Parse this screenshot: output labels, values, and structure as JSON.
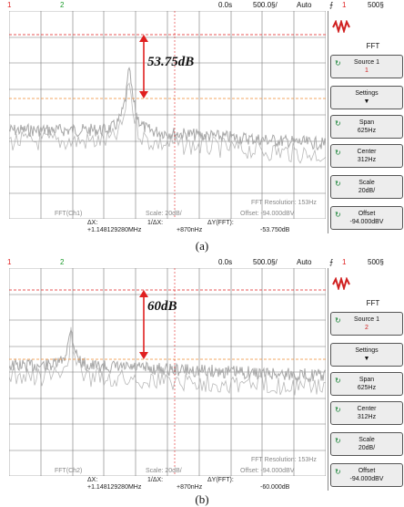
{
  "top_bar": {
    "ch1": "1",
    "ch2": "2",
    "time_pos": "0.0s",
    "time_div": "500.0§/",
    "mode": "Auto",
    "trigger_ch": "1",
    "trig_level": "500§"
  },
  "side_panel": {
    "fft_label": "FFT",
    "source_label": "Source 1",
    "settings_label": "Settings",
    "span_label": "Span",
    "span_value": "625Hz",
    "center_label": "Center",
    "center_value": "312Hz",
    "scale_label": "Scale",
    "scale_value": "20dB/",
    "offset_label": "Offset",
    "offset_value": "-94.000dBV"
  },
  "panels": [
    {
      "annotation": "53.75dB",
      "source_value": "1",
      "fft_ch": "FFT(Ch1)",
      "scale": "Scale: 20dB/",
      "offset": "Offset: -94.000dBV",
      "resolution": "FFT Resolution: 153Hz",
      "dx_label": "ΔX:",
      "dx_value": "+1.148129280MHz",
      "inv_dx_label": "1/ΔX:",
      "inv_dx_value": "+870nHz",
      "dy_label": "ΔY(FFT):",
      "dy_value": "-53.750dB",
      "caption": "(a)"
    },
    {
      "annotation": "60dB",
      "source_value": "2",
      "fft_ch": "FFT(Ch2)",
      "scale": "Scale: 20dB/",
      "offset": "Offset: -94.000dBV",
      "resolution": "FFT Resolution: 153Hz",
      "dx_label": "ΔX:",
      "dx_value": "+1.148129280MHz",
      "inv_dx_label": "1/ΔX:",
      "inv_dx_value": "+870nHz",
      "dy_label": "ΔY(FFT):",
      "dy_value": "-60.000dB",
      "caption": "(b)"
    }
  ],
  "colors": {
    "ch1": "#e02020",
    "ch2": "#1a9a2a",
    "trace": "#a8a8a8",
    "marker_red": "#e02020",
    "marker_orange": "#f08a30",
    "grid": "#777777"
  }
}
